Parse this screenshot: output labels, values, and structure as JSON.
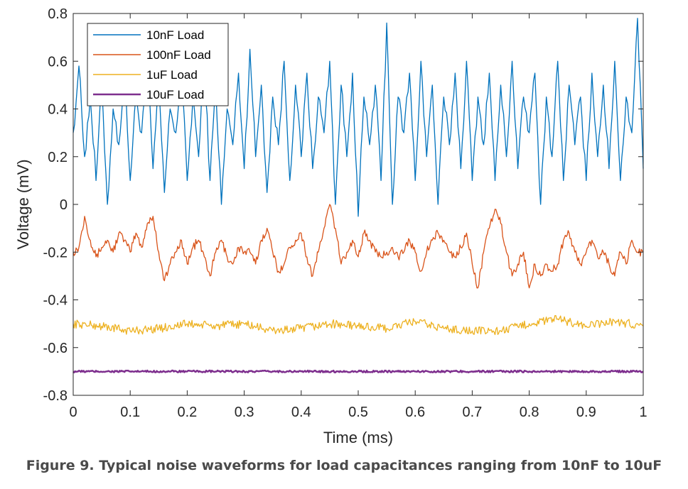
{
  "figure": {
    "caption": "Figure 9.  Typical noise waveforms for load capacitances ranging from 10nF to 10uF"
  },
  "chart_data": {
    "type": "line",
    "xlabel": "Time (ms)",
    "ylabel": "Voltage (mV)",
    "xlim": [
      0,
      1
    ],
    "ylim": [
      -0.8,
      0.8
    ],
    "xticks": [
      "0",
      "0.1",
      "0.2",
      "0.3",
      "0.4",
      "0.5",
      "0.6",
      "0.7",
      "0.8",
      "0.9",
      "1"
    ],
    "yticks": [
      "0.8",
      "0.6",
      "0.4",
      "0.2",
      "0",
      "-0.2",
      "-0.4",
      "-0.6",
      "-0.8"
    ],
    "grid": false,
    "legend_position": "top-left",
    "series": [
      {
        "name": "10nF Load",
        "color": "#0072BD",
        "x": [
          0,
          0.01,
          0.02,
          0.03,
          0.04,
          0.05,
          0.06,
          0.07,
          0.08,
          0.09,
          0.1,
          0.11,
          0.12,
          0.13,
          0.14,
          0.15,
          0.16,
          0.17,
          0.18,
          0.19,
          0.2,
          0.21,
          0.22,
          0.23,
          0.24,
          0.25,
          0.26,
          0.27,
          0.28,
          0.29,
          0.3,
          0.31,
          0.32,
          0.33,
          0.34,
          0.35,
          0.36,
          0.37,
          0.38,
          0.39,
          0.4,
          0.41,
          0.42,
          0.43,
          0.44,
          0.45,
          0.46,
          0.47,
          0.48,
          0.49,
          0.5,
          0.51,
          0.52,
          0.53,
          0.54,
          0.55,
          0.56,
          0.57,
          0.58,
          0.59,
          0.6,
          0.61,
          0.62,
          0.63,
          0.64,
          0.65,
          0.66,
          0.67,
          0.68,
          0.69,
          0.7,
          0.71,
          0.72,
          0.73,
          0.74,
          0.75,
          0.76,
          0.77,
          0.78,
          0.79,
          0.8,
          0.81,
          0.82,
          0.83,
          0.84,
          0.85,
          0.86,
          0.87,
          0.88,
          0.89,
          0.9,
          0.91,
          0.92,
          0.93,
          0.94,
          0.95,
          0.96,
          0.97,
          0.98,
          0.99,
          1
        ],
        "y": [
          0.3,
          0.58,
          0.2,
          0.45,
          0.1,
          0.5,
          0.0,
          0.4,
          0.25,
          0.55,
          0.1,
          0.45,
          0.3,
          0.6,
          0.15,
          0.5,
          0.05,
          0.4,
          0.3,
          0.55,
          0.1,
          0.45,
          0.2,
          0.6,
          0.1,
          0.5,
          0.0,
          0.4,
          0.25,
          0.55,
          0.15,
          0.65,
          0.2,
          0.5,
          0.05,
          0.45,
          0.25,
          0.6,
          0.1,
          0.5,
          0.2,
          0.55,
          0.15,
          0.45,
          0.3,
          0.6,
          0.0,
          0.5,
          0.2,
          0.55,
          -0.05,
          0.45,
          0.25,
          0.5,
          0.1,
          0.76,
          0.0,
          0.45,
          0.3,
          0.55,
          0.1,
          0.6,
          0.2,
          0.5,
          0.0,
          0.45,
          0.25,
          0.55,
          0.15,
          0.6,
          0.1,
          0.45,
          0.25,
          0.55,
          0.1,
          0.5,
          0.2,
          0.6,
          0.15,
          0.45,
          0.3,
          0.55,
          0.0,
          0.45,
          0.2,
          0.6,
          0.1,
          0.5,
          0.25,
          0.45,
          0.1,
          0.55,
          0.2,
          0.5,
          0.15,
          0.6,
          0.1,
          0.45,
          0.3,
          0.78,
          0.15
        ]
      },
      {
        "name": "100nF Load",
        "color": "#D95319",
        "x": [
          0,
          0.01,
          0.02,
          0.03,
          0.04,
          0.05,
          0.06,
          0.07,
          0.08,
          0.09,
          0.1,
          0.11,
          0.12,
          0.13,
          0.14,
          0.15,
          0.16,
          0.17,
          0.18,
          0.19,
          0.2,
          0.21,
          0.22,
          0.23,
          0.24,
          0.25,
          0.26,
          0.27,
          0.28,
          0.29,
          0.3,
          0.31,
          0.32,
          0.33,
          0.34,
          0.35,
          0.36,
          0.37,
          0.38,
          0.39,
          0.4,
          0.41,
          0.42,
          0.43,
          0.44,
          0.45,
          0.46,
          0.47,
          0.48,
          0.49,
          0.5,
          0.51,
          0.52,
          0.53,
          0.54,
          0.55,
          0.56,
          0.57,
          0.58,
          0.59,
          0.6,
          0.61,
          0.62,
          0.63,
          0.64,
          0.65,
          0.66,
          0.67,
          0.68,
          0.69,
          0.7,
          0.71,
          0.72,
          0.73,
          0.74,
          0.75,
          0.76,
          0.77,
          0.78,
          0.79,
          0.8,
          0.81,
          0.82,
          0.83,
          0.84,
          0.85,
          0.86,
          0.87,
          0.88,
          0.89,
          0.9,
          0.91,
          0.92,
          0.93,
          0.94,
          0.95,
          0.96,
          0.97,
          0.98,
          0.99,
          1
        ],
        "y": [
          -0.2,
          -0.18,
          -0.05,
          -0.15,
          -0.22,
          -0.18,
          -0.15,
          -0.2,
          -0.12,
          -0.15,
          -0.2,
          -0.12,
          -0.18,
          -0.08,
          -0.05,
          -0.2,
          -0.32,
          -0.25,
          -0.2,
          -0.15,
          -0.25,
          -0.18,
          -0.15,
          -0.22,
          -0.3,
          -0.2,
          -0.15,
          -0.22,
          -0.25,
          -0.18,
          -0.2,
          -0.2,
          -0.25,
          -0.15,
          -0.1,
          -0.2,
          -0.28,
          -0.25,
          -0.18,
          -0.15,
          -0.12,
          -0.22,
          -0.3,
          -0.2,
          -0.1,
          -0.0,
          -0.1,
          -0.25,
          -0.2,
          -0.15,
          -0.22,
          -0.12,
          -0.15,
          -0.2,
          -0.22,
          -0.2,
          -0.18,
          -0.22,
          -0.2,
          -0.15,
          -0.2,
          -0.28,
          -0.2,
          -0.15,
          -0.12,
          -0.15,
          -0.2,
          -0.22,
          -0.18,
          -0.12,
          -0.25,
          -0.35,
          -0.2,
          -0.1,
          -0.02,
          -0.08,
          -0.2,
          -0.3,
          -0.25,
          -0.2,
          -0.35,
          -0.25,
          -0.3,
          -0.25,
          -0.28,
          -0.25,
          -0.15,
          -0.12,
          -0.2,
          -0.25,
          -0.2,
          -0.15,
          -0.22,
          -0.2,
          -0.25,
          -0.3,
          -0.2,
          -0.25,
          -0.15,
          -0.2,
          -0.2
        ]
      },
      {
        "name": "1uF Load",
        "color": "#EDB120",
        "x": [
          0,
          0.05,
          0.1,
          0.15,
          0.2,
          0.25,
          0.3,
          0.35,
          0.4,
          0.45,
          0.5,
          0.55,
          0.6,
          0.65,
          0.7,
          0.75,
          0.8,
          0.85,
          0.9,
          0.95,
          1
        ],
        "y": [
          -0.5,
          -0.51,
          -0.53,
          -0.52,
          -0.5,
          -0.51,
          -0.5,
          -0.53,
          -0.52,
          -0.5,
          -0.51,
          -0.52,
          -0.49,
          -0.52,
          -0.53,
          -0.53,
          -0.5,
          -0.48,
          -0.51,
          -0.49,
          -0.51
        ]
      },
      {
        "name": "10uF Load",
        "color": "#7E2F8E",
        "x": [
          0,
          0.1,
          0.2,
          0.3,
          0.4,
          0.5,
          0.6,
          0.7,
          0.8,
          0.9,
          1
        ],
        "y": [
          -0.7,
          -0.7,
          -0.7,
          -0.7,
          -0.7,
          -0.7,
          -0.7,
          -0.7,
          -0.7,
          -0.7,
          -0.7
        ]
      }
    ]
  }
}
